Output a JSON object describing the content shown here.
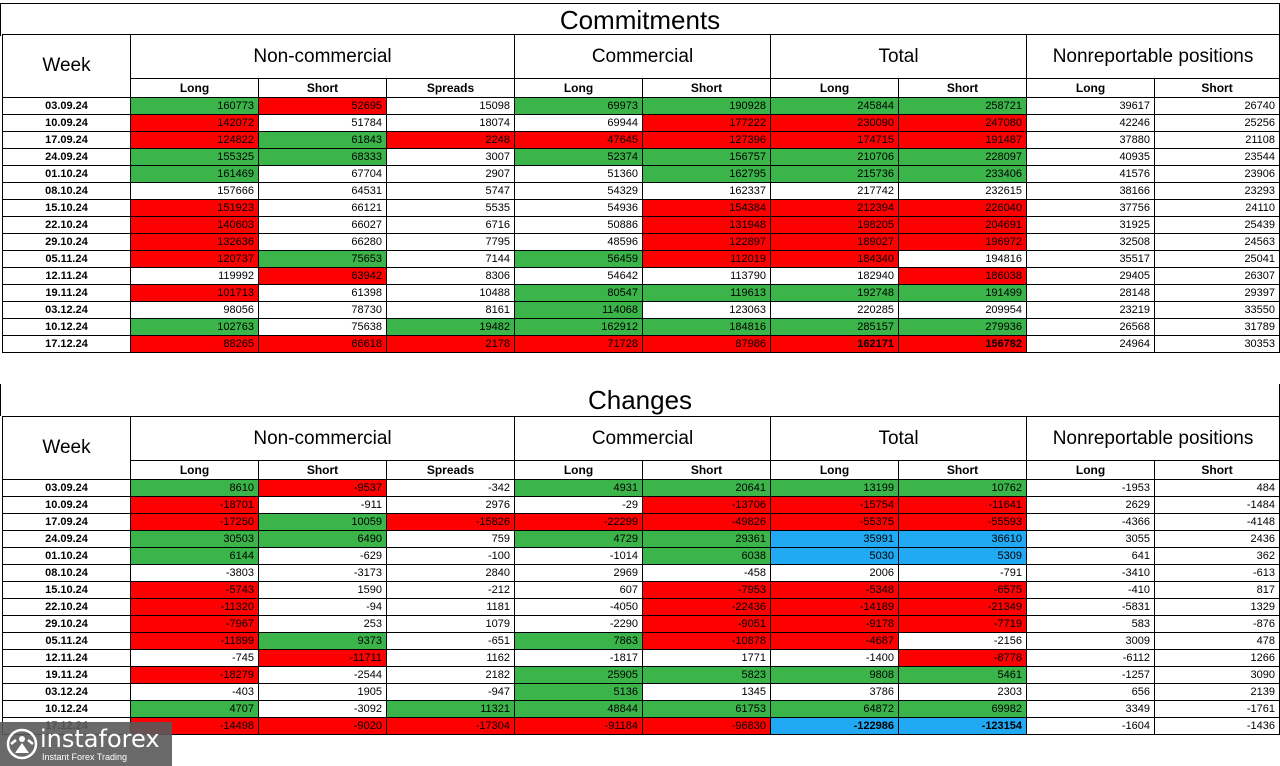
{
  "commitments": {
    "title": "Commitments",
    "week_header": "Week",
    "groups": [
      "Non-commercial",
      "Commercial",
      "Total",
      "Nonreportable positions"
    ],
    "subheaders": [
      "Long",
      "Short",
      "Spreads",
      "Long",
      "Short",
      "Long",
      "Short",
      "Long",
      "Short"
    ],
    "rows": [
      {
        "week": "03.09.24",
        "values": [
          "160773",
          "52695",
          "15098",
          "69973",
          "190928",
          "245844",
          "258721",
          "39617",
          "26740"
        ],
        "colors": [
          "g",
          "r",
          "",
          "g",
          "g",
          "g",
          "g",
          "",
          ""
        ]
      },
      {
        "week": "10.09.24",
        "values": [
          "142072",
          "51784",
          "18074",
          "69944",
          "177222",
          "230090",
          "247080",
          "42246",
          "25256"
        ],
        "colors": [
          "r",
          "",
          "",
          "",
          "r",
          "r",
          "r",
          "",
          ""
        ]
      },
      {
        "week": "17.09.24",
        "values": [
          "124822",
          "61843",
          "2248",
          "47645",
          "127396",
          "174715",
          "191487",
          "37880",
          "21108"
        ],
        "colors": [
          "r",
          "g",
          "r",
          "r",
          "r",
          "r",
          "r",
          "",
          ""
        ]
      },
      {
        "week": "24.09.24",
        "values": [
          "155325",
          "68333",
          "3007",
          "52374",
          "156757",
          "210706",
          "228097",
          "40935",
          "23544"
        ],
        "colors": [
          "g",
          "g",
          "",
          "g",
          "g",
          "g",
          "g",
          "",
          ""
        ]
      },
      {
        "week": "01.10.24",
        "values": [
          "161469",
          "67704",
          "2907",
          "51360",
          "162795",
          "215736",
          "233406",
          "41576",
          "23906"
        ],
        "colors": [
          "g",
          "",
          "",
          "",
          "g",
          "g",
          "g",
          "",
          ""
        ]
      },
      {
        "week": "08.10.24",
        "values": [
          "157666",
          "64531",
          "5747",
          "54329",
          "162337",
          "217742",
          "232615",
          "38166",
          "23293"
        ],
        "colors": [
          "",
          "",
          "",
          "",
          "",
          "",
          "",
          "",
          ""
        ]
      },
      {
        "week": "15.10.24",
        "values": [
          "151923",
          "66121",
          "5535",
          "54936",
          "154384",
          "212394",
          "226040",
          "37756",
          "24110"
        ],
        "colors": [
          "r",
          "",
          "",
          "",
          "r",
          "r",
          "r",
          "",
          ""
        ]
      },
      {
        "week": "22.10.24",
        "values": [
          "140603",
          "66027",
          "6716",
          "50886",
          "131948",
          "198205",
          "204691",
          "31925",
          "25439"
        ],
        "colors": [
          "r",
          "",
          "",
          "",
          "r",
          "r",
          "r",
          "",
          ""
        ]
      },
      {
        "week": "29.10.24",
        "values": [
          "132636",
          "66280",
          "7795",
          "48596",
          "122897",
          "189027",
          "196972",
          "32508",
          "24563"
        ],
        "colors": [
          "r",
          "",
          "",
          "",
          "r",
          "r",
          "r",
          "",
          ""
        ]
      },
      {
        "week": "05.11.24",
        "values": [
          "120737",
          "75653",
          "7144",
          "56459",
          "112019",
          "184340",
          "194816",
          "35517",
          "25041"
        ],
        "colors": [
          "r",
          "g",
          "",
          "g",
          "r",
          "r",
          "",
          "",
          ""
        ]
      },
      {
        "week": "12.11.24",
        "values": [
          "119992",
          "63942",
          "8306",
          "54642",
          "113790",
          "182940",
          "186038",
          "29405",
          "26307"
        ],
        "colors": [
          "",
          "r",
          "",
          "",
          "",
          "",
          "r",
          "",
          ""
        ]
      },
      {
        "week": "19.11.24",
        "values": [
          "101713",
          "61398",
          "10488",
          "80547",
          "119613",
          "192748",
          "191499",
          "28148",
          "29397"
        ],
        "colors": [
          "r",
          "",
          "",
          "g",
          "g",
          "g",
          "g",
          "",
          ""
        ]
      },
      {
        "week": "03.12.24",
        "values": [
          "98056",
          "78730",
          "8161",
          "114068",
          "123063",
          "220285",
          "209954",
          "23219",
          "33550"
        ],
        "colors": [
          "",
          "",
          "",
          "g",
          "",
          "",
          "",
          "",
          ""
        ]
      },
      {
        "week": "10.12.24",
        "values": [
          "102763",
          "75638",
          "19482",
          "162912",
          "184816",
          "285157",
          "279936",
          "26568",
          "31789"
        ],
        "colors": [
          "g",
          "",
          "g",
          "g",
          "g",
          "g",
          "g",
          "",
          ""
        ]
      },
      {
        "week": "17.12.24",
        "values": [
          "88265",
          "66618",
          "2178",
          "71728",
          "87986",
          "162171",
          "156782",
          "24964",
          "30353"
        ],
        "colors": [
          "r",
          "r",
          "r",
          "r",
          "r",
          "r",
          "r",
          "",
          ""
        ],
        "bold": [
          false,
          false,
          false,
          false,
          false,
          true,
          true,
          false,
          false
        ]
      }
    ]
  },
  "changes": {
    "title": "Changes",
    "week_header": "Week",
    "groups": [
      "Non-commercial",
      "Commercial",
      "Total",
      "Nonreportable positions"
    ],
    "subheaders": [
      "Long",
      "Short",
      "Spreads",
      "Long",
      "Short",
      "Long",
      "Short",
      "Long",
      "Short"
    ],
    "rows": [
      {
        "week": "03.09.24",
        "values": [
          "8610",
          "-9537",
          "-342",
          "4931",
          "20641",
          "13199",
          "10762",
          "-1953",
          "484"
        ],
        "colors": [
          "g",
          "r",
          "",
          "g",
          "g",
          "g",
          "g",
          "",
          ""
        ]
      },
      {
        "week": "10.09.24",
        "values": [
          "-18701",
          "-911",
          "2976",
          "-29",
          "-13706",
          "-15754",
          "-11641",
          "2629",
          "-1484"
        ],
        "colors": [
          "r",
          "",
          "",
          "",
          "r",
          "r",
          "r",
          "",
          ""
        ]
      },
      {
        "week": "17.09.24",
        "values": [
          "-17250",
          "10059",
          "-15826",
          "-22299",
          "-49826",
          "-55375",
          "-55593",
          "-4366",
          "-4148"
        ],
        "colors": [
          "r",
          "g",
          "r",
          "r",
          "r",
          "r",
          "r",
          "",
          ""
        ]
      },
      {
        "week": "24.09.24",
        "values": [
          "30503",
          "6490",
          "759",
          "4729",
          "29361",
          "35991",
          "36610",
          "3055",
          "2436"
        ],
        "colors": [
          "g",
          "g",
          "",
          "g",
          "g",
          "b",
          "b",
          "",
          ""
        ]
      },
      {
        "week": "01.10.24",
        "values": [
          "6144",
          "-629",
          "-100",
          "-1014",
          "6038",
          "5030",
          "5309",
          "641",
          "362"
        ],
        "colors": [
          "g",
          "",
          "",
          "",
          "g",
          "b",
          "b",
          "",
          ""
        ]
      },
      {
        "week": "08.10.24",
        "values": [
          "-3803",
          "-3173",
          "2840",
          "2969",
          "-458",
          "2006",
          "-791",
          "-3410",
          "-613"
        ],
        "colors": [
          "",
          "",
          "",
          "",
          "",
          "",
          "",
          "",
          ""
        ]
      },
      {
        "week": "15.10.24",
        "values": [
          "-5743",
          "1590",
          "-212",
          "607",
          "-7953",
          "-5348",
          "-6575",
          "-410",
          "817"
        ],
        "colors": [
          "r",
          "",
          "",
          "",
          "r",
          "r",
          "r",
          "",
          ""
        ]
      },
      {
        "week": "22.10.24",
        "values": [
          "-11320",
          "-94",
          "1181",
          "-4050",
          "-22436",
          "-14189",
          "-21349",
          "-5831",
          "1329"
        ],
        "colors": [
          "r",
          "",
          "",
          "",
          "r",
          "r",
          "r",
          "",
          ""
        ]
      },
      {
        "week": "29.10.24",
        "values": [
          "-7967",
          "253",
          "1079",
          "-2290",
          "-9051",
          "-9178",
          "-7719",
          "583",
          "-876"
        ],
        "colors": [
          "r",
          "",
          "",
          "",
          "r",
          "r",
          "r",
          "",
          ""
        ]
      },
      {
        "week": "05.11.24",
        "values": [
          "-11899",
          "9373",
          "-651",
          "7863",
          "-10878",
          "-4687",
          "-2156",
          "3009",
          "478"
        ],
        "colors": [
          "r",
          "g",
          "",
          "g",
          "r",
          "r",
          "",
          "",
          ""
        ]
      },
      {
        "week": "12.11.24",
        "values": [
          "-745",
          "-11711",
          "1162",
          "-1817",
          "1771",
          "-1400",
          "-8778",
          "-6112",
          "1266"
        ],
        "colors": [
          "",
          "r",
          "",
          "",
          "",
          "",
          "r",
          "",
          ""
        ]
      },
      {
        "week": "19.11.24",
        "values": [
          "-18279",
          "-2544",
          "2182",
          "25905",
          "5823",
          "9808",
          "5461",
          "-1257",
          "3090"
        ],
        "colors": [
          "r",
          "",
          "",
          "g",
          "g",
          "g",
          "g",
          "",
          ""
        ]
      },
      {
        "week": "03.12.24",
        "values": [
          "-403",
          "1905",
          "-947",
          "5136",
          "1345",
          "3786",
          "2303",
          "656",
          "2139"
        ],
        "colors": [
          "",
          "",
          "",
          "g",
          "",
          "",
          "",
          "",
          ""
        ]
      },
      {
        "week": "10.12.24",
        "values": [
          "4707",
          "-3092",
          "11321",
          "48844",
          "61753",
          "64872",
          "69982",
          "3349",
          "-1761"
        ],
        "colors": [
          "g",
          "",
          "g",
          "g",
          "g",
          "g",
          "g",
          "",
          ""
        ]
      },
      {
        "week": "17.12.24",
        "values": [
          "-14498",
          "-9020",
          "-17304",
          "-91184",
          "-96830",
          "-122986",
          "-123154",
          "-1604",
          "-1436"
        ],
        "colors": [
          "r",
          "r",
          "r",
          "r",
          "r",
          "b",
          "b",
          "",
          ""
        ],
        "bold": [
          false,
          false,
          false,
          false,
          false,
          true,
          true,
          false,
          false
        ]
      }
    ]
  },
  "logo": {
    "name": "instaforex",
    "tagline": "Instant Forex Trading",
    "icon": "instaforex-logo-icon"
  }
}
